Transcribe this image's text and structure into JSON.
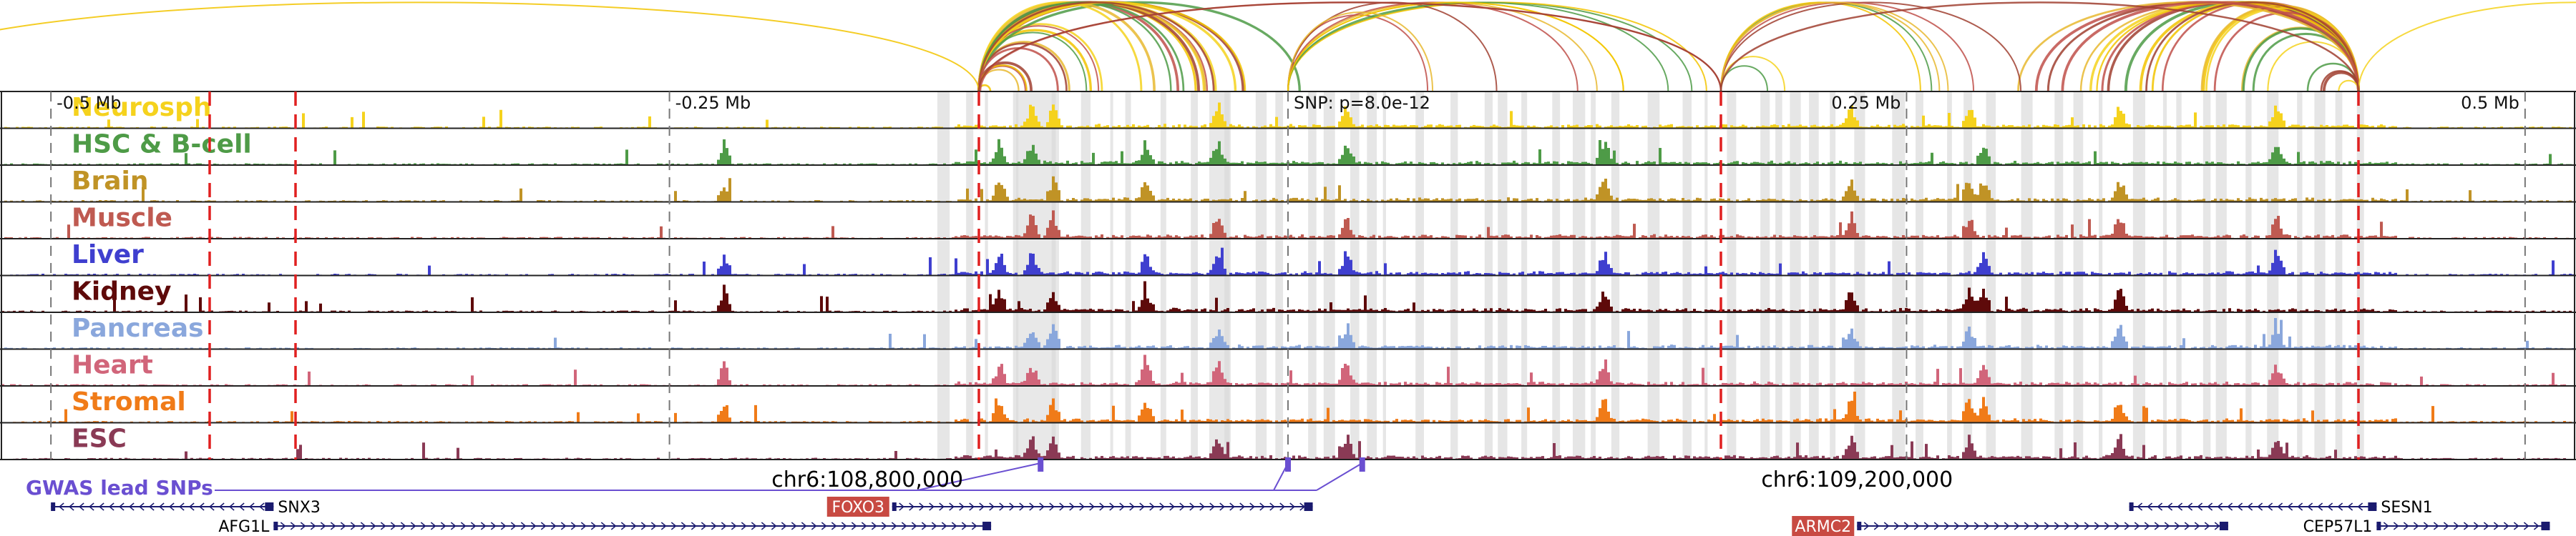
{
  "axis": {
    "ticks": [
      {
        "label": "-0.5 Mb",
        "value": -0.5
      },
      {
        "label": "-0.25 Mb",
        "value": -0.25
      },
      {
        "label": "0.25 Mb",
        "value": 0.25
      },
      {
        "label": "0.5 Mb",
        "value": 0.5
      }
    ],
    "snp_label": "SNP: p=8.0e-12",
    "range_mb": [
      -0.52,
      0.52
    ]
  },
  "tracks": [
    {
      "name": "Neurosph",
      "color": "#f5d21d"
    },
    {
      "name": "HSC & B-cell",
      "color": "#4e9b47"
    },
    {
      "name": "Brain",
      "color": "#c09326"
    },
    {
      "name": "Muscle",
      "color": "#bf5a51"
    },
    {
      "name": "Liver",
      "color": "#3f3fcf"
    },
    {
      "name": "Kidney",
      "color": "#5e0a0a"
    },
    {
      "name": "Pancreas",
      "color": "#8aa7dc"
    },
    {
      "name": "Heart",
      "color": "#d1657a"
    },
    {
      "name": "Stromal",
      "color": "#f07b18"
    },
    {
      "name": "ESC",
      "color": "#8a3a55"
    }
  ],
  "arc_colors": [
    "#f2c400",
    "#f5d21d",
    "#a04030",
    "#c0504a",
    "#4e9b47",
    "#e8b830"
  ],
  "gwas": {
    "label": "GWAS lead SNPs",
    "color": "#6a4fd1",
    "snp_positions_mb": [
      -0.1,
      0.0,
      0.03
    ]
  },
  "coords": [
    {
      "label": "chr6:108,800,000",
      "value": -0.17
    },
    {
      "label": "chr6:109,200,000",
      "value": 0.23
    }
  ],
  "genes": [
    {
      "name": "SNX3",
      "start": -0.5,
      "end": -0.41,
      "strand": "-",
      "row": 0,
      "highlight": false
    },
    {
      "name": "AFG1L",
      "start": -0.41,
      "end": -0.12,
      "strand": "+",
      "row": 1,
      "highlight": false
    },
    {
      "name": "FOXO3",
      "start": -0.16,
      "end": 0.01,
      "strand": "+",
      "row": 0,
      "highlight": true
    },
    {
      "name": "ARMC2",
      "start": 0.23,
      "end": 0.38,
      "strand": "+",
      "row": 1,
      "highlight": true
    },
    {
      "name": "SESN1",
      "start": 0.34,
      "end": 0.44,
      "strand": "-",
      "row": 0,
      "highlight": false
    },
    {
      "name": "CEP57L1",
      "start": 0.44,
      "end": 0.51,
      "strand": "+",
      "row": 1,
      "highlight": false
    }
  ],
  "highlight_box_color": "#c84a42",
  "gene_color": "#1a1a6e"
}
